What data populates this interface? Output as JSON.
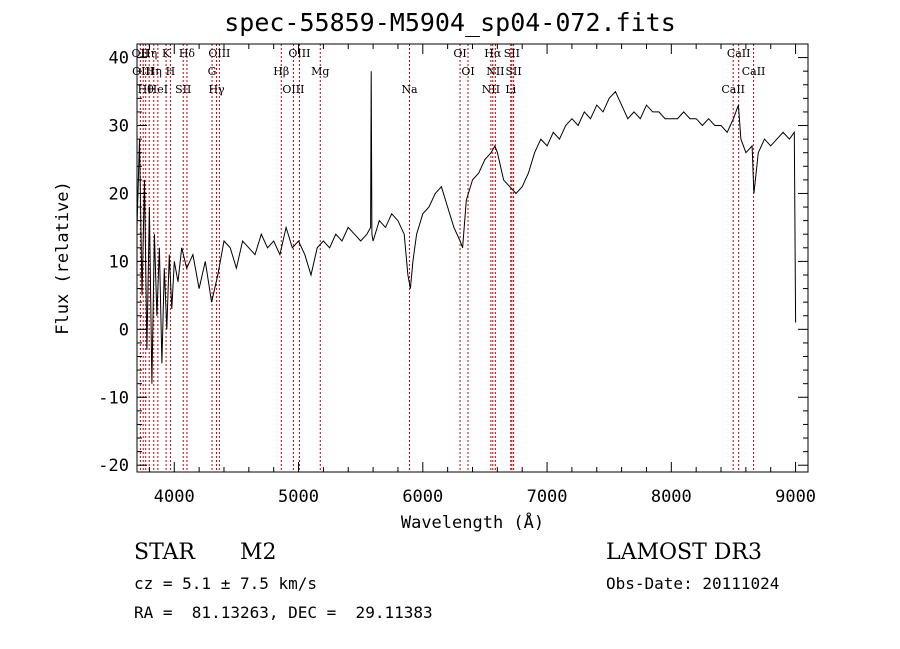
{
  "chart_data": {
    "type": "line",
    "title": "spec-55859-M5904_sp04-072.fits",
    "xlabel": "Wavelength (Å)",
    "ylabel": "Flux (relative)",
    "xlim": [
      3700,
      9100
    ],
    "ylim": [
      -21,
      42
    ],
    "x_ticks": [
      4000,
      5000,
      6000,
      7000,
      8000,
      9000
    ],
    "y_ticks": [
      -20,
      -10,
      0,
      10,
      20,
      30,
      40
    ],
    "series": [
      {
        "name": "spectrum",
        "x": [
          3700,
          3720,
          3740,
          3760,
          3780,
          3800,
          3820,
          3840,
          3860,
          3880,
          3900,
          3920,
          3940,
          3960,
          3980,
          4000,
          4030,
          4060,
          4100,
          4150,
          4200,
          4250,
          4300,
          4350,
          4400,
          4450,
          4500,
          4550,
          4600,
          4650,
          4700,
          4750,
          4800,
          4850,
          4900,
          4950,
          5000,
          5050,
          5100,
          5150,
          5200,
          5250,
          5300,
          5350,
          5400,
          5450,
          5500,
          5550,
          5580,
          5585,
          5590,
          5600,
          5650,
          5700,
          5750,
          5800,
          5850,
          5880,
          5900,
          5920,
          5950,
          6000,
          6050,
          6100,
          6150,
          6200,
          6250,
          6300,
          6320,
          6350,
          6400,
          6450,
          6500,
          6550,
          6580,
          6600,
          6650,
          6700,
          6750,
          6800,
          6850,
          6900,
          6950,
          7000,
          7050,
          7100,
          7150,
          7200,
          7250,
          7300,
          7350,
          7400,
          7450,
          7500,
          7550,
          7600,
          7650,
          7700,
          7750,
          7800,
          7850,
          7900,
          7950,
          8000,
          8050,
          8100,
          8150,
          8200,
          8250,
          8300,
          8350,
          8400,
          8450,
          8500,
          8540,
          8560,
          8600,
          8650,
          8665,
          8700,
          8750,
          8800,
          8850,
          8900,
          8950,
          8990,
          9000
        ],
        "y": [
          15,
          28,
          5,
          22,
          -3,
          18,
          -8,
          14,
          2,
          12,
          -5,
          9,
          0,
          11,
          3,
          10,
          7,
          12,
          9,
          11,
          6,
          10,
          4,
          8,
          13,
          12,
          9,
          13,
          12,
          11,
          14,
          12,
          13,
          11,
          15,
          12,
          13,
          11,
          8,
          12,
          13,
          12,
          14,
          13,
          15,
          14,
          13,
          14,
          15,
          38,
          14,
          13,
          16,
          15,
          17,
          16,
          14,
          8,
          6,
          10,
          14,
          17,
          18,
          20,
          21,
          18,
          15,
          13,
          12,
          19,
          22,
          23,
          25,
          26,
          27,
          26,
          22,
          21,
          20,
          21,
          23,
          26,
          28,
          27,
          29,
          28,
          30,
          31,
          30,
          32,
          31,
          33,
          32,
          34,
          35,
          33,
          31,
          32,
          31,
          33,
          32,
          32,
          31,
          31,
          31,
          32,
          31,
          31,
          30,
          31,
          30,
          30,
          29,
          31,
          33,
          28,
          26,
          27,
          20,
          26,
          28,
          27,
          28,
          29,
          28,
          29,
          1
        ]
      }
    ],
    "lines": [
      {
        "wavelength": 3727,
        "label": "OII"
      },
      {
        "wavelength": 3750,
        "label": "OIII"
      },
      {
        "wavelength": 3770,
        "label": "Hθ"
      },
      {
        "wavelength": 3798,
        "label": "Hη"
      },
      {
        "wavelength": 3835,
        "label": "Hη"
      },
      {
        "wavelength": 3868,
        "label": "HeI"
      },
      {
        "wavelength": 3934,
        "label": "K"
      },
      {
        "wavelength": 3969,
        "label": "H"
      },
      {
        "wavelength": 4072,
        "label": "SII"
      },
      {
        "wavelength": 4102,
        "label": "Hδ"
      },
      {
        "wavelength": 4304,
        "label": "G"
      },
      {
        "wavelength": 4340,
        "label": "Hγ"
      },
      {
        "wavelength": 4363,
        "label": "OIII"
      },
      {
        "wavelength": 4861,
        "label": "Hβ"
      },
      {
        "wavelength": 4959,
        "label": "OIII"
      },
      {
        "wavelength": 5007,
        "label": "OIII"
      },
      {
        "wavelength": 5175,
        "label": "Mg"
      },
      {
        "wavelength": 5893,
        "label": "Na"
      },
      {
        "wavelength": 6300,
        "label": "OI"
      },
      {
        "wavelength": 6364,
        "label": "OI"
      },
      {
        "wavelength": 6548,
        "label": "NII"
      },
      {
        "wavelength": 6563,
        "label": "Hα"
      },
      {
        "wavelength": 6584,
        "label": "NII"
      },
      {
        "wavelength": 6708,
        "label": "Li"
      },
      {
        "wavelength": 6717,
        "label": "SII"
      },
      {
        "wavelength": 6731,
        "label": "SII"
      },
      {
        "wavelength": 8498,
        "label": "CaII"
      },
      {
        "wavelength": 8542,
        "label": "CaII"
      },
      {
        "wavelength": 8662,
        "label": "CaII"
      }
    ]
  },
  "info": {
    "object_class": "STAR",
    "subclass": "M2",
    "survey": "LAMOST DR3",
    "redshift": "cz = 5.1 ± 7.5 km/s",
    "obs_date": "Obs-Date: 20111024",
    "coords": "RA =  81.13263, DEC =  29.11383"
  }
}
